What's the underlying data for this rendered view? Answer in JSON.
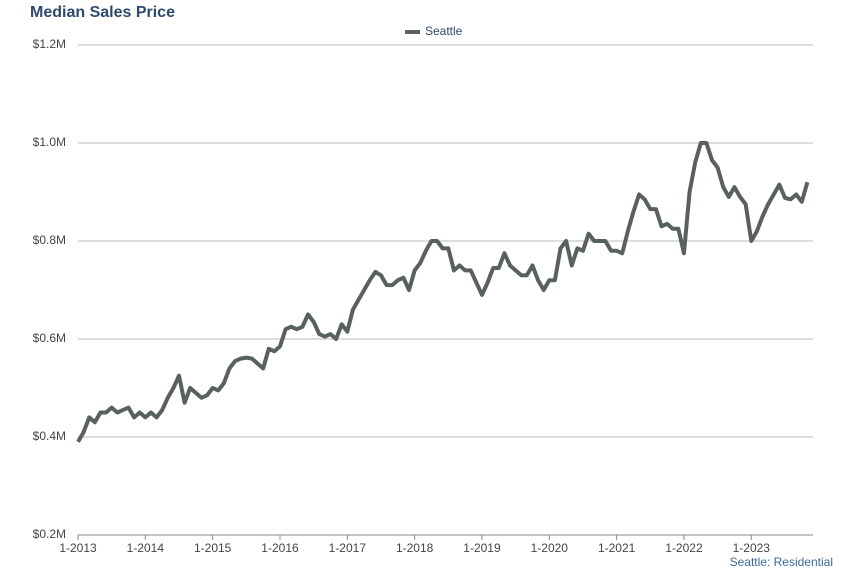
{
  "chart_data": {
    "type": "line",
    "title": "Median Sales Price",
    "footer": "Seattle: Residential",
    "categories": [
      "1-2013",
      null,
      null,
      null,
      null,
      null,
      null,
      null,
      null,
      null,
      null,
      null,
      "1-2014",
      null,
      null,
      null,
      null,
      null,
      null,
      null,
      null,
      null,
      null,
      null,
      "1-2015",
      null,
      null,
      null,
      null,
      null,
      null,
      null,
      null,
      null,
      null,
      null,
      "1-2016",
      null,
      null,
      null,
      null,
      null,
      null,
      null,
      null,
      null,
      null,
      null,
      "1-2017",
      null,
      null,
      null,
      null,
      null,
      null,
      null,
      null,
      null,
      null,
      null,
      "1-2018",
      null,
      null,
      null,
      null,
      null,
      null,
      null,
      null,
      null,
      null,
      null,
      "1-2019",
      null,
      null,
      null,
      null,
      null,
      null,
      null,
      null,
      null,
      null,
      null,
      "1-2020",
      null,
      null,
      null,
      null,
      null,
      null,
      null,
      null,
      null,
      null,
      null,
      "1-2021",
      null,
      null,
      null,
      null,
      null,
      null,
      null,
      null,
      null,
      null,
      null,
      "1-2022",
      null,
      null,
      null,
      null,
      null,
      null,
      null,
      null,
      null,
      null,
      null,
      "1-2023",
      null,
      null,
      null,
      null,
      null,
      null,
      null,
      null,
      null,
      null
    ],
    "series": [
      {
        "name": "Seattle",
        "color": "#596060",
        "values": [
          390000,
          410000,
          440000,
          430000,
          450000,
          450000,
          460000,
          450000,
          455000,
          460000,
          440000,
          450000,
          440000,
          450000,
          440000,
          455000,
          480000,
          500000,
          525000,
          470000,
          500000,
          490000,
          480000,
          485000,
          500000,
          495000,
          510000,
          540000,
          555000,
          560000,
          562000,
          560000,
          550000,
          540000,
          580000,
          575000,
          585000,
          620000,
          625000,
          620000,
          625000,
          650000,
          635000,
          610000,
          605000,
          610000,
          600000,
          630000,
          615000,
          660000,
          680000,
          700000,
          720000,
          737000,
          730000,
          710000,
          710000,
          720000,
          725000,
          700000,
          740000,
          755000,
          780000,
          800000,
          800000,
          785000,
          785000,
          740000,
          750000,
          740000,
          740000,
          715000,
          690000,
          715000,
          745000,
          745000,
          775000,
          750000,
          740000,
          730000,
          730000,
          750000,
          720000,
          700000,
          720000,
          720000,
          785000,
          800000,
          750000,
          785000,
          780000,
          815000,
          800000,
          800000,
          800000,
          780000,
          780000,
          775000,
          820000,
          860000,
          895000,
          885000,
          865000,
          865000,
          830000,
          835000,
          825000,
          825000,
          775000,
          900000,
          960000,
          1000000,
          1000000,
          965000,
          950000,
          910000,
          890000,
          910000,
          890000,
          875000,
          800000,
          820000,
          850000,
          875000,
          895000,
          915000,
          888000,
          885000,
          895000,
          880000,
          920000
        ]
      }
    ],
    "ylim": [
      200000,
      1200000
    ],
    "yticks": [
      {
        "value": 200000,
        "label": "$0.2M"
      },
      {
        "value": 400000,
        "label": "$0.4M"
      },
      {
        "value": 600000,
        "label": "$0.6M"
      },
      {
        "value": 800000,
        "label": "$0.8M"
      },
      {
        "value": 1000000,
        "label": "$1.0M"
      },
      {
        "value": 1200000,
        "label": "$1.2M"
      }
    ],
    "grid": true
  }
}
